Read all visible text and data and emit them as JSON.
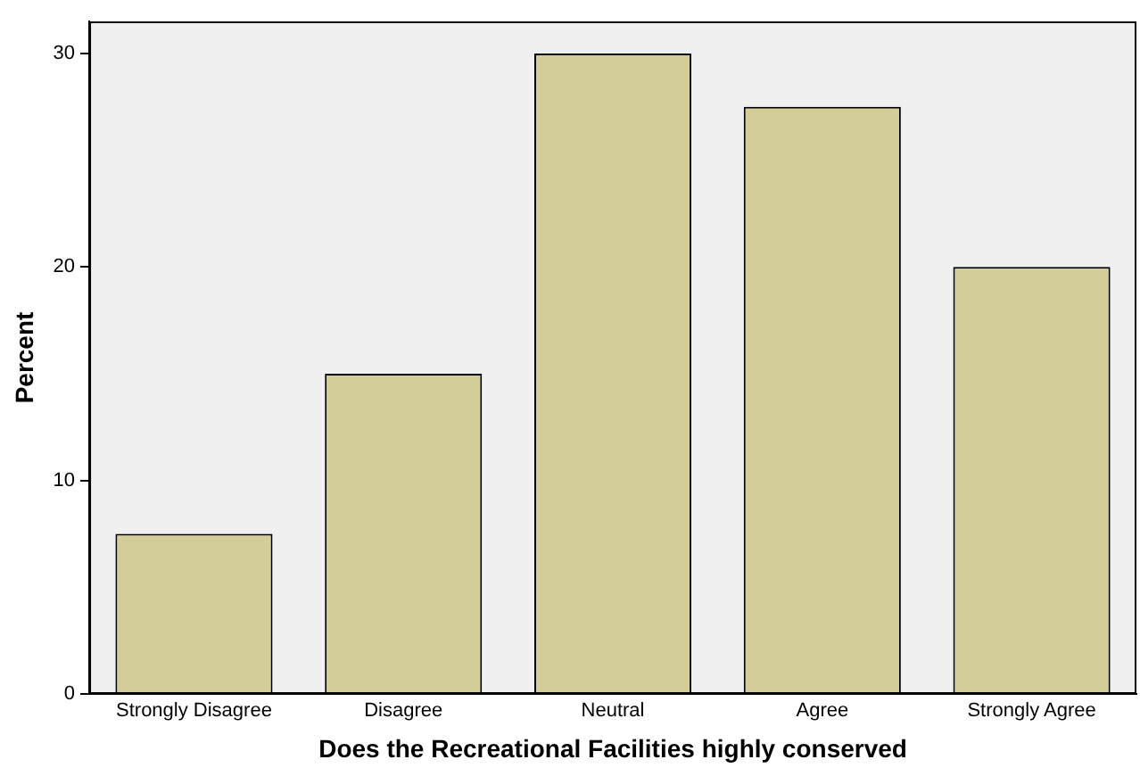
{
  "chart_data": {
    "type": "bar",
    "xlabel": "Does the Recreational Facilities highly conserved",
    "ylabel": "Percent",
    "categories": [
      "Strongly Disagree",
      "Disagree",
      "Neutral",
      "Agree",
      "Strongly Agree"
    ],
    "values": [
      7.5,
      15,
      30,
      27.5,
      20
    ],
    "color": "#d3ce97",
    "ylim": [
      0,
      31.5
    ],
    "yticks": [
      0,
      10,
      20,
      30
    ],
    "grid": false,
    "legend": false
  }
}
